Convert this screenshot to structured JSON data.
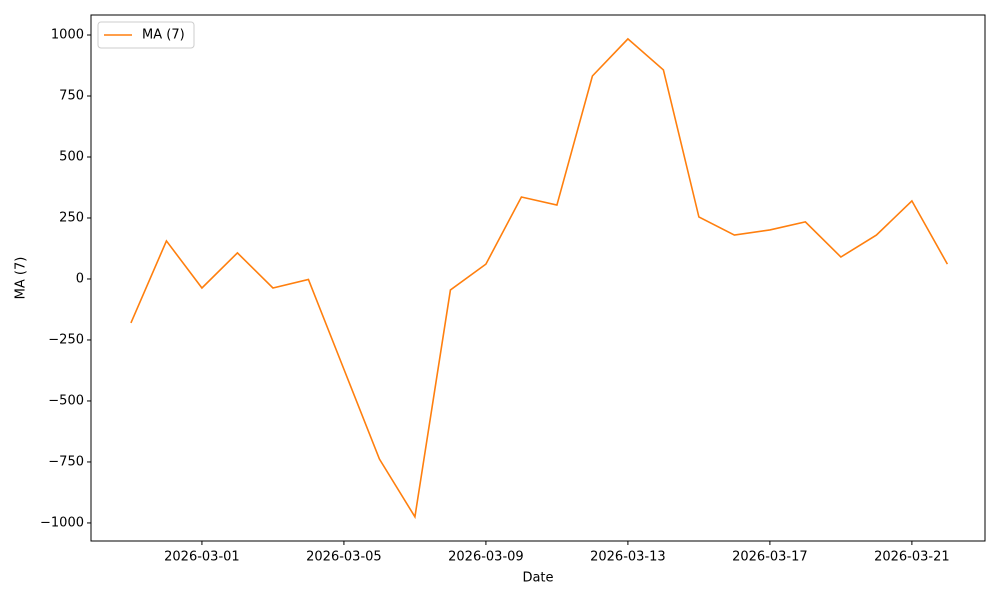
{
  "chart_data": {
    "type": "line",
    "x": [
      "2026-02-27",
      "2026-02-28",
      "2026-03-01",
      "2026-03-02",
      "2026-03-03",
      "2026-03-04",
      "2026-03-05",
      "2026-03-06",
      "2026-03-07",
      "2026-03-08",
      "2026-03-09",
      "2026-03-10",
      "2026-03-11",
      "2026-03-12",
      "2026-03-13",
      "2026-03-14",
      "2026-03-15",
      "2026-03-16",
      "2026-03-17",
      "2026-03-18",
      "2026-03-19",
      "2026-03-20",
      "2026-03-21",
      "2026-03-22"
    ],
    "series": [
      {
        "name": "MA (7)",
        "color": "#ff7f0e",
        "values": [
          -180,
          156,
          -37,
          107,
          -37,
          -2,
          -370,
          -738,
          -975,
          -45,
          61,
          336,
          303,
          832,
          984,
          857,
          254,
          180,
          201,
          234,
          90,
          180,
          320,
          61
        ]
      }
    ],
    "xlabel": "Date",
    "ylabel": "MA (7)",
    "xlim": [
      "2026-02-25T21:00",
      "2026-03-23T01:26"
    ],
    "xticks": [
      "2026-03-01",
      "2026-03-05",
      "2026-03-09",
      "2026-03-13",
      "2026-03-17",
      "2026-03-21"
    ],
    "ylim": [
      -1074,
      1082
    ],
    "yticks": [
      {
        "value": -1000,
        "label": "−1000"
      },
      {
        "value": -750,
        "label": "−750"
      },
      {
        "value": -500,
        "label": "−500"
      },
      {
        "value": -250,
        "label": "−250"
      },
      0,
      250,
      500,
      750,
      1000
    ],
    "legend": "upper left"
  }
}
